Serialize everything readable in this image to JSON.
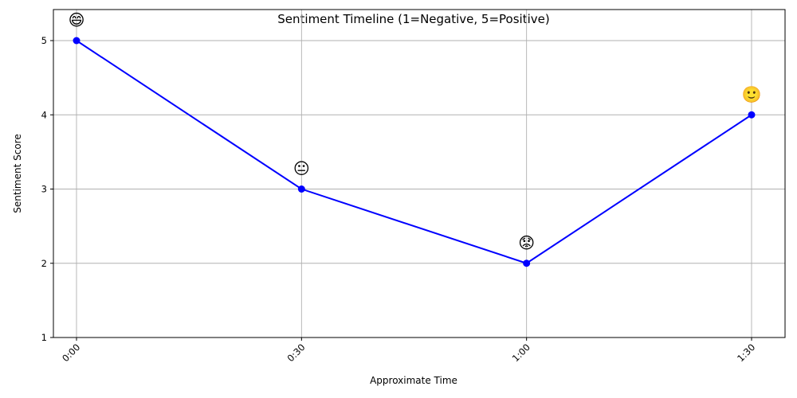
{
  "chart_data": {
    "type": "line",
    "title": "Sentiment Timeline (1=Negative, 5=Positive)",
    "xlabel": "Approximate Time",
    "ylabel": "Sentiment Score",
    "categories": [
      "0:00",
      "0:30",
      "1:00",
      "1:30"
    ],
    "series": [
      {
        "values": [
          5,
          3,
          2,
          4
        ],
        "color": "#0000ff"
      }
    ],
    "annotations": [
      "😄",
      "😐",
      "😟",
      "🙂"
    ],
    "ylim": [
      1,
      5
    ],
    "yticks": [
      1,
      2,
      3,
      4,
      5
    ],
    "grid": true,
    "legend": "none"
  }
}
